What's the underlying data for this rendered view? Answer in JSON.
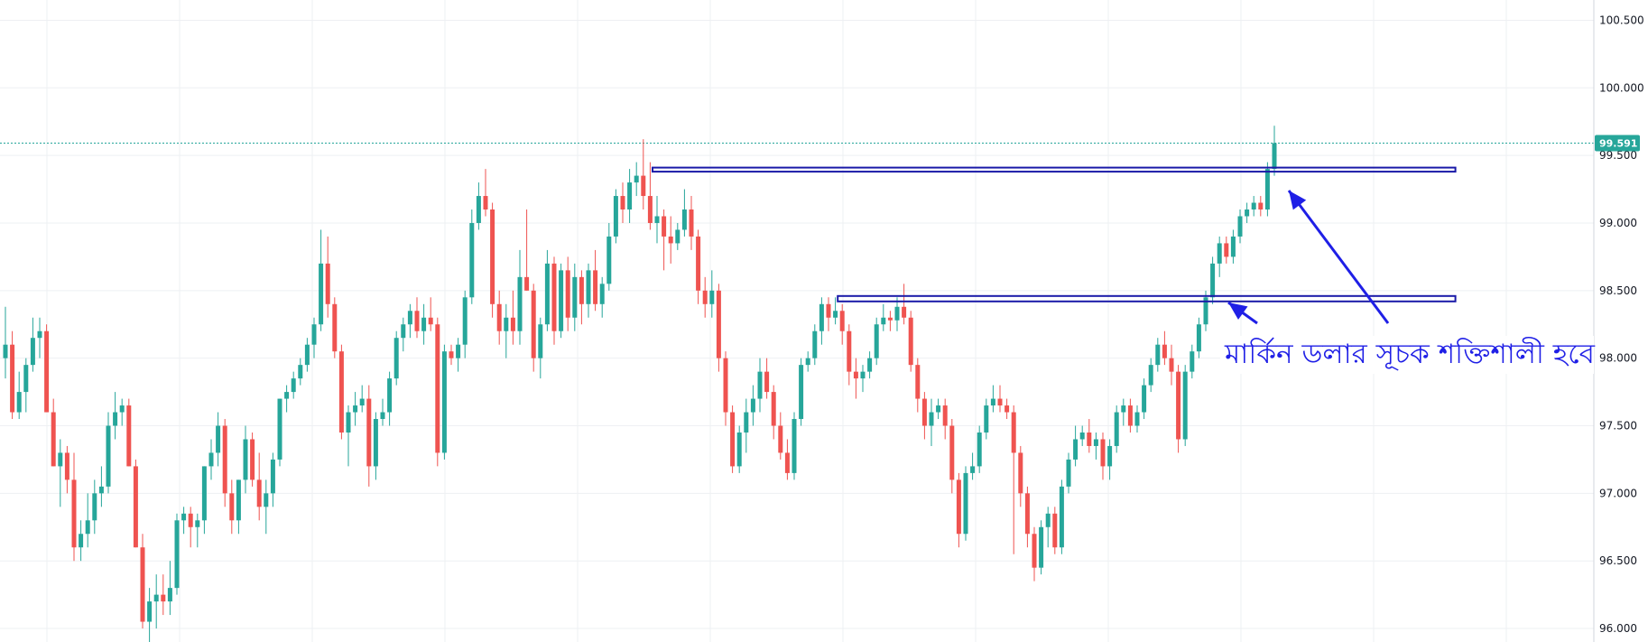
{
  "chart_data": {
    "type": "candlestick",
    "y_axis": {
      "position": "right",
      "range": [
        95.9,
        100.65
      ],
      "ticks": [
        "100.500",
        "100.000",
        "99.500",
        "99.000",
        "98.500",
        "98.000",
        "97.500",
        "97.000",
        "96.500",
        "96.000"
      ]
    },
    "grid": true,
    "last_price": {
      "label": "99.591",
      "value": 99.591
    },
    "colors": {
      "up": "#26a69a",
      "down": "#ef5350",
      "grid": "#eef0f3",
      "annotation": "#1f1fe6",
      "price_tag": "#26a69a"
    },
    "resistance_zones": [
      {
        "bar_start": 95,
        "bar_end": 211,
        "low": 99.38,
        "high": 99.41
      },
      {
        "bar_start": 122,
        "bar_end": 211,
        "low": 98.42,
        "high": 98.46
      }
    ],
    "annotation": {
      "text": "মার্কিন ডলার সূচক শক্তিশালী হবে"
    },
    "ohlc": [
      [
        98.0,
        98.38,
        97.85,
        98.1
      ],
      [
        98.1,
        98.2,
        97.55,
        97.6
      ],
      [
        97.6,
        97.9,
        97.55,
        97.75
      ],
      [
        97.75,
        98.0,
        97.6,
        97.95
      ],
      [
        97.95,
        98.3,
        97.9,
        98.15
      ],
      [
        98.15,
        98.3,
        98.0,
        98.2
      ],
      [
        98.2,
        98.25,
        97.6,
        97.6
      ],
      [
        97.6,
        97.7,
        97.2,
        97.2
      ],
      [
        97.2,
        97.4,
        96.9,
        97.3
      ],
      [
        97.3,
        97.35,
        97.0,
        97.1
      ],
      [
        97.1,
        97.3,
        96.5,
        96.6
      ],
      [
        96.6,
        96.8,
        96.5,
        96.7
      ],
      [
        96.7,
        97.0,
        96.6,
        96.8
      ],
      [
        96.8,
        97.1,
        96.7,
        97.0
      ],
      [
        97.0,
        97.2,
        96.9,
        97.05
      ],
      [
        97.05,
        97.6,
        97.0,
        97.5
      ],
      [
        97.5,
        97.75,
        97.4,
        97.6
      ],
      [
        97.6,
        97.7,
        97.5,
        97.65
      ],
      [
        97.65,
        97.7,
        97.2,
        97.2
      ],
      [
        97.2,
        97.25,
        96.6,
        96.6
      ],
      [
        96.6,
        96.7,
        96.0,
        96.05
      ],
      [
        96.05,
        96.3,
        95.9,
        96.2
      ],
      [
        96.2,
        96.4,
        96.0,
        96.25
      ],
      [
        96.25,
        96.4,
        96.1,
        96.2
      ],
      [
        96.2,
        96.5,
        96.1,
        96.3
      ],
      [
        96.3,
        96.85,
        96.25,
        96.8
      ],
      [
        96.8,
        96.9,
        96.7,
        96.85
      ],
      [
        96.85,
        96.9,
        96.6,
        96.75
      ],
      [
        96.75,
        96.85,
        96.6,
        96.8
      ],
      [
        96.8,
        97.2,
        96.7,
        97.2
      ],
      [
        97.2,
        97.4,
        97.1,
        97.3
      ],
      [
        97.3,
        97.6,
        97.2,
        97.5
      ],
      [
        97.5,
        97.55,
        96.9,
        97.0
      ],
      [
        97.0,
        97.1,
        96.7,
        96.8
      ],
      [
        96.8,
        97.1,
        96.7,
        97.1
      ],
      [
        97.1,
        97.5,
        97.0,
        97.4
      ],
      [
        97.4,
        97.45,
        97.05,
        97.1
      ],
      [
        97.1,
        97.3,
        96.8,
        96.9
      ],
      [
        96.9,
        97.1,
        96.7,
        97.0
      ],
      [
        97.0,
        97.3,
        96.9,
        97.25
      ],
      [
        97.25,
        97.7,
        97.2,
        97.7
      ],
      [
        97.7,
        97.8,
        97.6,
        97.75
      ],
      [
        97.75,
        97.9,
        97.7,
        97.85
      ],
      [
        97.85,
        98.0,
        97.8,
        97.95
      ],
      [
        97.95,
        98.15,
        97.9,
        98.1
      ],
      [
        98.1,
        98.3,
        98.0,
        98.25
      ],
      [
        98.25,
        98.95,
        98.2,
        98.7
      ],
      [
        98.7,
        98.9,
        98.3,
        98.4
      ],
      [
        98.4,
        98.45,
        98.0,
        98.05
      ],
      [
        98.05,
        98.1,
        97.4,
        97.45
      ],
      [
        97.45,
        97.65,
        97.2,
        97.6
      ],
      [
        97.6,
        97.75,
        97.5,
        97.65
      ],
      [
        97.65,
        97.8,
        97.6,
        97.7
      ],
      [
        97.7,
        97.8,
        97.05,
        97.2
      ],
      [
        97.2,
        97.6,
        97.1,
        97.55
      ],
      [
        97.55,
        97.7,
        97.5,
        97.6
      ],
      [
        97.6,
        97.9,
        97.5,
        97.85
      ],
      [
        97.85,
        98.2,
        97.8,
        98.15
      ],
      [
        98.15,
        98.3,
        98.05,
        98.25
      ],
      [
        98.25,
        98.4,
        98.15,
        98.35
      ],
      [
        98.35,
        98.45,
        98.15,
        98.2
      ],
      [
        98.2,
        98.4,
        98.1,
        98.3
      ],
      [
        98.3,
        98.45,
        98.2,
        98.25
      ],
      [
        98.25,
        98.3,
        97.2,
        97.3
      ],
      [
        97.3,
        98.1,
        97.25,
        98.05
      ],
      [
        98.05,
        98.1,
        97.95,
        98.0
      ],
      [
        98.0,
        98.15,
        97.9,
        98.1
      ],
      [
        98.1,
        98.5,
        98.0,
        98.45
      ],
      [
        98.45,
        99.1,
        98.4,
        99.0
      ],
      [
        99.0,
        99.3,
        98.95,
        99.2
      ],
      [
        99.2,
        99.4,
        99.05,
        99.1
      ],
      [
        99.1,
        99.15,
        98.3,
        98.4
      ],
      [
        98.4,
        98.5,
        98.1,
        98.2
      ],
      [
        98.2,
        98.4,
        98.0,
        98.3
      ],
      [
        98.3,
        98.5,
        98.1,
        98.2
      ],
      [
        98.2,
        98.8,
        98.1,
        98.6
      ],
      [
        98.6,
        99.1,
        98.5,
        98.5
      ],
      [
        98.5,
        98.55,
        97.9,
        98.0
      ],
      [
        98.0,
        98.3,
        97.85,
        98.25
      ],
      [
        98.25,
        98.8,
        98.2,
        98.7
      ],
      [
        98.7,
        98.75,
        98.1,
        98.2
      ],
      [
        98.2,
        98.7,
        98.15,
        98.65
      ],
      [
        98.65,
        98.75,
        98.2,
        98.3
      ],
      [
        98.3,
        98.7,
        98.2,
        98.6
      ],
      [
        98.6,
        98.65,
        98.25,
        98.4
      ],
      [
        98.4,
        98.7,
        98.3,
        98.65
      ],
      [
        98.65,
        98.8,
        98.35,
        98.4
      ],
      [
        98.4,
        98.6,
        98.3,
        98.55
      ],
      [
        98.55,
        99.0,
        98.5,
        98.9
      ],
      [
        98.9,
        99.25,
        98.85,
        99.2
      ],
      [
        99.2,
        99.3,
        99.0,
        99.1
      ],
      [
        99.1,
        99.4,
        99.0,
        99.3
      ],
      [
        99.3,
        99.45,
        99.2,
        99.35
      ],
      [
        99.35,
        99.62,
        99.1,
        99.2
      ],
      [
        99.2,
        99.45,
        98.95,
        99.0
      ],
      [
        99.0,
        99.2,
        98.85,
        99.05
      ],
      [
        99.05,
        99.1,
        98.65,
        98.9
      ],
      [
        98.9,
        99.05,
        98.7,
        98.85
      ],
      [
        98.85,
        99.0,
        98.8,
        98.95
      ],
      [
        98.95,
        99.25,
        98.9,
        99.1
      ],
      [
        99.1,
        99.2,
        98.8,
        98.9
      ],
      [
        98.9,
        98.95,
        98.4,
        98.5
      ],
      [
        98.5,
        98.6,
        98.3,
        98.4
      ],
      [
        98.4,
        98.65,
        98.3,
        98.5
      ],
      [
        98.5,
        98.55,
        97.9,
        98.0
      ],
      [
        98.0,
        98.05,
        97.5,
        97.6
      ],
      [
        97.6,
        97.65,
        97.15,
        97.2
      ],
      [
        97.2,
        97.5,
        97.15,
        97.45
      ],
      [
        97.45,
        97.7,
        97.3,
        97.6
      ],
      [
        97.6,
        97.8,
        97.5,
        97.7
      ],
      [
        97.7,
        98.0,
        97.6,
        97.9
      ],
      [
        97.9,
        98.0,
        97.7,
        97.75
      ],
      [
        97.75,
        97.8,
        97.4,
        97.5
      ],
      [
        97.5,
        97.6,
        97.25,
        97.3
      ],
      [
        97.3,
        97.4,
        97.1,
        97.15
      ],
      [
        97.15,
        97.6,
        97.1,
        97.55
      ],
      [
        97.55,
        98.0,
        97.5,
        97.95
      ],
      [
        97.95,
        98.05,
        97.9,
        98.0
      ],
      [
        98.0,
        98.25,
        97.95,
        98.2
      ],
      [
        98.2,
        98.45,
        98.1,
        98.4
      ],
      [
        98.4,
        98.45,
        98.2,
        98.3
      ],
      [
        98.3,
        98.45,
        98.25,
        98.35
      ],
      [
        98.35,
        98.4,
        98.1,
        98.2
      ],
      [
        98.2,
        98.25,
        97.8,
        97.9
      ],
      [
        97.9,
        98.0,
        97.7,
        97.85
      ],
      [
        97.85,
        97.95,
        97.75,
        97.9
      ],
      [
        97.9,
        98.05,
        97.85,
        98.0
      ],
      [
        98.0,
        98.3,
        97.95,
        98.25
      ],
      [
        98.25,
        98.4,
        98.2,
        98.3
      ],
      [
        98.3,
        98.35,
        98.2,
        98.28
      ],
      [
        98.28,
        98.45,
        98.2,
        98.38
      ],
      [
        98.38,
        98.55,
        98.25,
        98.3
      ],
      [
        98.3,
        98.35,
        97.9,
        97.95
      ],
      [
        97.95,
        98.0,
        97.6,
        97.7
      ],
      [
        97.7,
        97.75,
        97.4,
        97.5
      ],
      [
        97.5,
        97.7,
        97.35,
        97.6
      ],
      [
        97.6,
        97.7,
        97.55,
        97.65
      ],
      [
        97.65,
        97.7,
        97.4,
        97.5
      ],
      [
        97.5,
        97.55,
        97.0,
        97.1
      ],
      [
        97.1,
        97.15,
        96.6,
        96.7
      ],
      [
        96.7,
        97.2,
        96.65,
        97.15
      ],
      [
        97.15,
        97.3,
        97.1,
        97.2
      ],
      [
        97.2,
        97.5,
        97.15,
        97.45
      ],
      [
        97.45,
        97.7,
        97.4,
        97.65
      ],
      [
        97.65,
        97.8,
        97.6,
        97.7
      ],
      [
        97.7,
        97.8,
        97.6,
        97.65
      ],
      [
        97.65,
        97.7,
        97.55,
        97.6
      ],
      [
        97.6,
        97.65,
        96.55,
        97.3
      ],
      [
        97.3,
        97.35,
        96.9,
        97.0
      ],
      [
        97.0,
        97.05,
        96.6,
        96.7
      ],
      [
        96.7,
        96.75,
        96.35,
        96.45
      ],
      [
        96.45,
        96.8,
        96.4,
        96.75
      ],
      [
        96.75,
        96.9,
        96.6,
        96.85
      ],
      [
        96.85,
        96.9,
        96.55,
        96.6
      ],
      [
        96.6,
        97.1,
        96.55,
        97.05
      ],
      [
        97.05,
        97.3,
        97.0,
        97.25
      ],
      [
        97.25,
        97.5,
        97.2,
        97.4
      ],
      [
        97.4,
        97.5,
        97.35,
        97.45
      ],
      [
        97.45,
        97.55,
        97.3,
        97.35
      ],
      [
        97.35,
        97.45,
        97.25,
        97.4
      ],
      [
        97.4,
        97.45,
        97.1,
        97.2
      ],
      [
        97.2,
        97.4,
        97.1,
        97.35
      ],
      [
        97.35,
        97.65,
        97.3,
        97.6
      ],
      [
        97.6,
        97.7,
        97.5,
        97.65
      ],
      [
        97.65,
        97.7,
        97.45,
        97.5
      ],
      [
        97.5,
        97.65,
        97.45,
        97.6
      ],
      [
        97.6,
        97.85,
        97.55,
        97.8
      ],
      [
        97.8,
        98.0,
        97.75,
        97.95
      ],
      [
        97.95,
        98.15,
        97.9,
        98.1
      ],
      [
        98.1,
        98.2,
        97.95,
        98.0
      ],
      [
        98.0,
        98.1,
        97.8,
        97.9
      ],
      [
        97.9,
        97.95,
        97.3,
        97.4
      ],
      [
        97.4,
        97.95,
        97.35,
        97.9
      ],
      [
        97.9,
        98.1,
        97.85,
        98.05
      ],
      [
        98.05,
        98.3,
        98.0,
        98.25
      ],
      [
        98.25,
        98.5,
        98.2,
        98.45
      ],
      [
        98.45,
        98.75,
        98.4,
        98.7
      ],
      [
        98.7,
        98.9,
        98.6,
        98.85
      ],
      [
        98.85,
        98.9,
        98.7,
        98.75
      ],
      [
        98.75,
        98.95,
        98.7,
        98.9
      ],
      [
        98.9,
        99.1,
        98.85,
        99.05
      ],
      [
        99.05,
        99.15,
        99.0,
        99.1
      ],
      [
        99.1,
        99.2,
        99.05,
        99.15
      ],
      [
        99.15,
        99.2,
        99.05,
        99.1
      ],
      [
        99.1,
        99.45,
        99.05,
        99.4
      ],
      [
        99.4,
        99.72,
        99.35,
        99.591
      ]
    ]
  }
}
